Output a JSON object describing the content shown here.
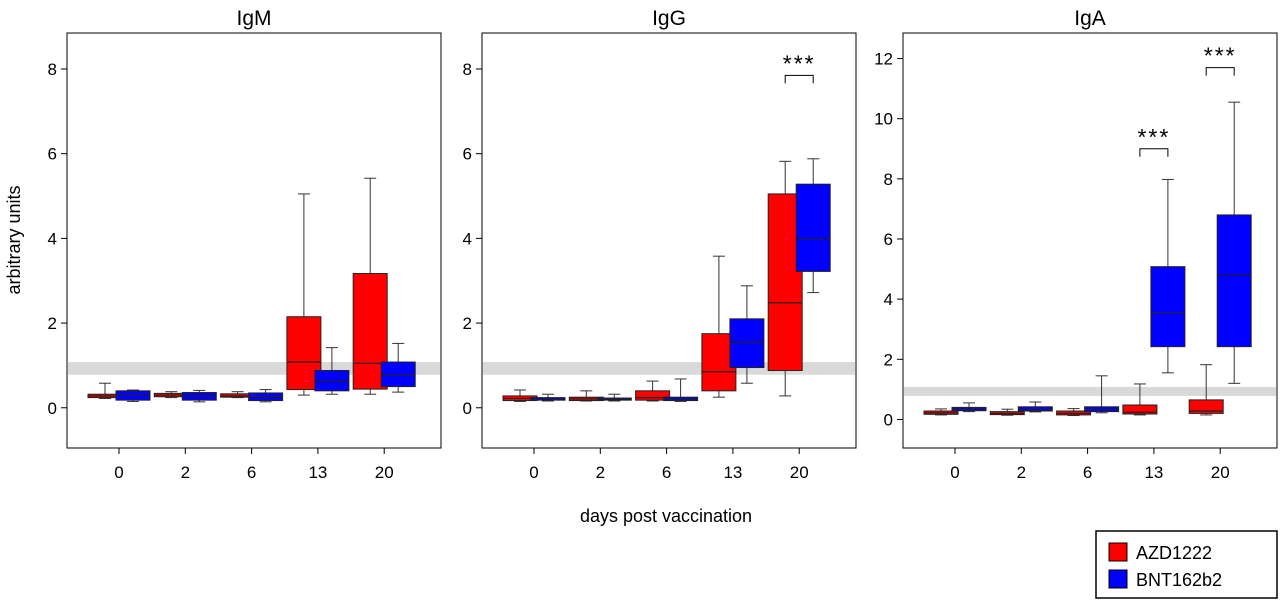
{
  "chart_data": {
    "type": "box",
    "x_label": "days post vaccination",
    "y_label": "arbitrary units",
    "categories": [
      "0",
      "2",
      "6",
      "13",
      "20"
    ],
    "legend": {
      "placement": "bottom-right",
      "entries": [
        {
          "name": "AZD1222",
          "color": "#ff0000"
        },
        {
          "name": "BNT162b2",
          "color": "#0000ff"
        }
      ]
    },
    "colors": {
      "AZD1222": "#ff0000",
      "BNT162b2": "#0000ff",
      "reference_band": "#d9d9d9"
    },
    "panels": [
      {
        "title": "IgM",
        "ylim": [
          -0.95,
          8.85
        ],
        "yticks": [
          0,
          2,
          4,
          6,
          8
        ],
        "reference_band": [
          0.78,
          1.08
        ],
        "boxes": [
          {
            "group": "AZD1222",
            "day": "0",
            "min": 0.22,
            "q1": 0.24,
            "median": 0.28,
            "q3": 0.32,
            "max": 0.58
          },
          {
            "group": "BNT162b2",
            "day": "0",
            "min": 0.15,
            "q1": 0.18,
            "median": 0.3,
            "q3": 0.4,
            "max": 0.42
          },
          {
            "group": "AZD1222",
            "day": "2",
            "min": 0.24,
            "q1": 0.26,
            "median": 0.3,
            "q3": 0.34,
            "max": 0.38
          },
          {
            "group": "BNT162b2",
            "day": "2",
            "min": 0.14,
            "q1": 0.18,
            "median": 0.28,
            "q3": 0.36,
            "max": 0.41
          },
          {
            "group": "AZD1222",
            "day": "6",
            "min": 0.24,
            "q1": 0.25,
            "median": 0.28,
            "q3": 0.33,
            "max": 0.38
          },
          {
            "group": "BNT162b2",
            "day": "6",
            "min": 0.14,
            "q1": 0.17,
            "median": 0.26,
            "q3": 0.35,
            "max": 0.43
          },
          {
            "group": "AZD1222",
            "day": "13",
            "min": 0.3,
            "q1": 0.43,
            "median": 1.08,
            "q3": 2.15,
            "max": 5.05
          },
          {
            "group": "BNT162b2",
            "day": "13",
            "min": 0.32,
            "q1": 0.4,
            "median": 0.62,
            "q3": 0.88,
            "max": 1.42
          },
          {
            "group": "AZD1222",
            "day": "20",
            "min": 0.32,
            "q1": 0.44,
            "median": 1.05,
            "q3": 3.17,
            "max": 5.42
          },
          {
            "group": "BNT162b2",
            "day": "20",
            "min": 0.37,
            "q1": 0.5,
            "median": 0.78,
            "q3": 1.08,
            "max": 1.52
          }
        ],
        "significance": []
      },
      {
        "title": "IgG",
        "ylim": [
          -0.95,
          8.85
        ],
        "yticks": [
          0,
          2,
          4,
          6,
          8
        ],
        "reference_band": [
          0.78,
          1.08
        ],
        "boxes": [
          {
            "group": "AZD1222",
            "day": "0",
            "min": 0.15,
            "q1": 0.17,
            "median": 0.22,
            "q3": 0.28,
            "max": 0.42
          },
          {
            "group": "BNT162b2",
            "day": "0",
            "min": 0.16,
            "q1": 0.18,
            "median": 0.2,
            "q3": 0.24,
            "max": 0.32
          },
          {
            "group": "AZD1222",
            "day": "2",
            "min": 0.16,
            "q1": 0.17,
            "median": 0.21,
            "q3": 0.25,
            "max": 0.4
          },
          {
            "group": "BNT162b2",
            "day": "2",
            "min": 0.16,
            "q1": 0.18,
            "median": 0.2,
            "q3": 0.23,
            "max": 0.32
          },
          {
            "group": "AZD1222",
            "day": "6",
            "min": 0.16,
            "q1": 0.18,
            "median": 0.24,
            "q3": 0.4,
            "max": 0.63
          },
          {
            "group": "BNT162b2",
            "day": "6",
            "min": 0.15,
            "q1": 0.17,
            "median": 0.2,
            "q3": 0.25,
            "max": 0.68
          },
          {
            "group": "AZD1222",
            "day": "13",
            "min": 0.25,
            "q1": 0.4,
            "median": 0.85,
            "q3": 1.75,
            "max": 3.58
          },
          {
            "group": "BNT162b2",
            "day": "13",
            "min": 0.58,
            "q1": 0.95,
            "median": 1.55,
            "q3": 2.1,
            "max": 2.88
          },
          {
            "group": "AZD1222",
            "day": "20",
            "min": 0.28,
            "q1": 0.88,
            "median": 2.48,
            "q3": 5.05,
            "max": 5.82
          },
          {
            "group": "BNT162b2",
            "day": "20",
            "min": 2.72,
            "q1": 3.22,
            "median": 4.0,
            "q3": 5.28,
            "max": 5.88
          }
        ],
        "significance": [
          {
            "day": "20",
            "label": "***",
            "y": 7.85
          }
        ]
      },
      {
        "title": "IgA",
        "ylim": [
          -0.95,
          12.85
        ],
        "yticks": [
          0,
          2,
          4,
          6,
          8,
          10,
          12
        ],
        "reference_band": [
          0.78,
          1.08
        ],
        "boxes": [
          {
            "group": "AZD1222",
            "day": "0",
            "min": 0.15,
            "q1": 0.17,
            "median": 0.22,
            "q3": 0.28,
            "max": 0.35
          },
          {
            "group": "BNT162b2",
            "day": "0",
            "min": 0.26,
            "q1": 0.29,
            "median": 0.34,
            "q3": 0.4,
            "max": 0.55
          },
          {
            "group": "AZD1222",
            "day": "2",
            "min": 0.14,
            "q1": 0.16,
            "median": 0.2,
            "q3": 0.26,
            "max": 0.34
          },
          {
            "group": "BNT162b2",
            "day": "2",
            "min": 0.25,
            "q1": 0.28,
            "median": 0.32,
            "q3": 0.42,
            "max": 0.58
          },
          {
            "group": "AZD1222",
            "day": "6",
            "min": 0.13,
            "q1": 0.15,
            "median": 0.2,
            "q3": 0.28,
            "max": 0.36
          },
          {
            "group": "BNT162b2",
            "day": "6",
            "min": 0.22,
            "q1": 0.26,
            "median": 0.32,
            "q3": 0.42,
            "max": 1.45
          },
          {
            "group": "AZD1222",
            "day": "13",
            "min": 0.15,
            "q1": 0.18,
            "median": 0.24,
            "q3": 0.48,
            "max": 1.18
          },
          {
            "group": "BNT162b2",
            "day": "13",
            "min": 1.55,
            "q1": 2.42,
            "median": 3.55,
            "q3": 5.08,
            "max": 7.98
          },
          {
            "group": "AZD1222",
            "day": "20",
            "min": 0.15,
            "q1": 0.2,
            "median": 0.28,
            "q3": 0.65,
            "max": 1.82
          },
          {
            "group": "BNT162b2",
            "day": "20",
            "min": 1.2,
            "q1": 2.42,
            "median": 4.8,
            "q3": 6.8,
            "max": 10.55
          }
        ],
        "significance": [
          {
            "day": "13",
            "label": "***",
            "y": 9.0
          },
          {
            "day": "20",
            "label": "***",
            "y": 11.7
          }
        ]
      }
    ]
  }
}
